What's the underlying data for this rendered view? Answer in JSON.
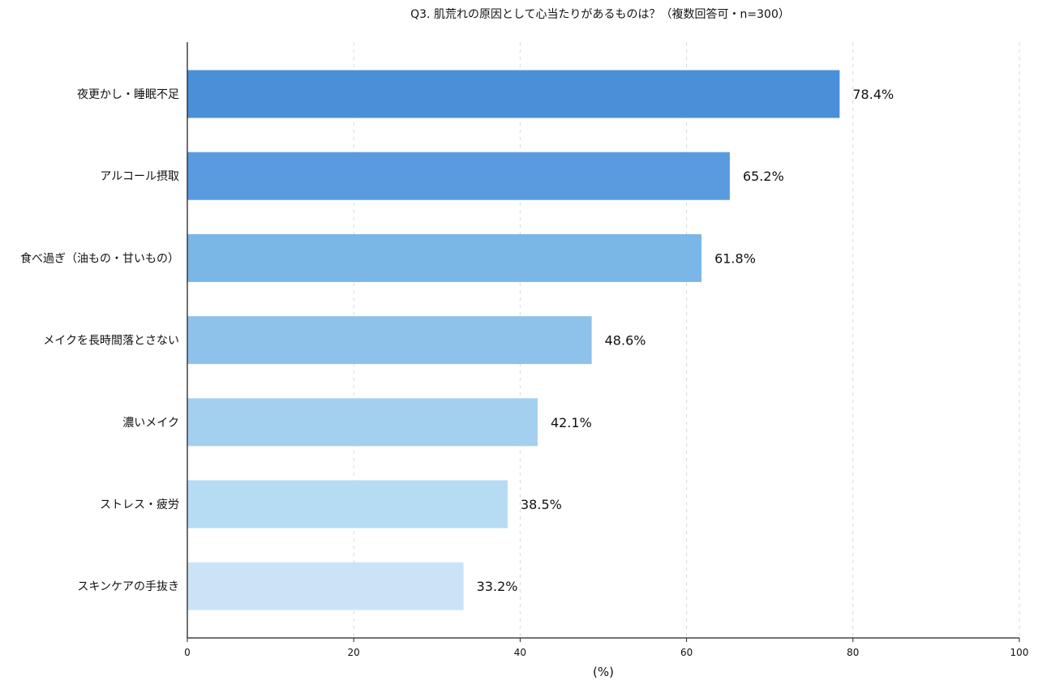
{
  "chart_data": {
    "type": "bar",
    "orientation": "horizontal",
    "title": "Q3. 肌荒れの原因として心当たりがあるものは？（複数回答可・n=300）",
    "xlabel": "(%)",
    "ylabel": "",
    "xlim": [
      0,
      100
    ],
    "xticks": [
      "0",
      "20",
      "40",
      "60",
      "80",
      "100"
    ],
    "grid": "vertical dashed",
    "categories": [
      "夜更かし・睡眠不足",
      "アルコール摂取",
      "食べ過ぎ（油もの・甘いもの）",
      "メイクを長時間落とさない",
      "濃いメイク",
      "ストレス・疲労",
      "スキンケアの手抜き"
    ],
    "values": [
      78.4,
      65.2,
      61.8,
      48.6,
      42.1,
      38.5,
      33.2
    ],
    "value_labels": [
      "78.4%",
      "65.2%",
      "61.8%",
      "48.6%",
      "42.1%",
      "38.5%",
      "33.2%"
    ],
    "colors": [
      "#4a90d9",
      "#5a9be0",
      "#7ab6e6",
      "#8fc2ea",
      "#a4d0f0",
      "#b6dcf3",
      "#cce3f6"
    ]
  }
}
